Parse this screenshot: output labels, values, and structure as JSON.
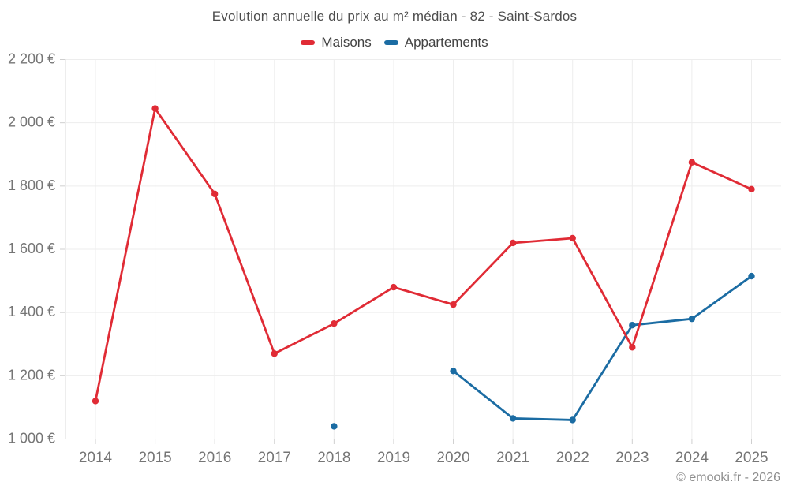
{
  "chart": {
    "title": "Evolution annuelle du prix au m² médian - 82 - Saint-Sardos",
    "footer": "© emooki.fr - 2026"
  },
  "chart_data": {
    "type": "line",
    "title": "Evolution annuelle du prix au m² médian - 82 - Saint-Sardos",
    "x": [
      2014,
      2015,
      2016,
      2017,
      2018,
      2019,
      2020,
      2021,
      2022,
      2023,
      2024,
      2025
    ],
    "series": [
      {
        "name": "Maisons",
        "color": "#e02b35",
        "values": [
          1120,
          2045,
          1775,
          1270,
          1365,
          1480,
          1425,
          1620,
          1635,
          1290,
          1875,
          1790
        ]
      },
      {
        "name": "Appartements",
        "color": "#1b6ca3",
        "values": [
          null,
          null,
          null,
          null,
          1040,
          null,
          1215,
          1065,
          1060,
          1360,
          1380,
          1515
        ]
      }
    ],
    "ylim": [
      1000,
      2200
    ],
    "yticks": [
      1000,
      1200,
      1400,
      1600,
      1800,
      2000,
      2200
    ],
    "ytick_labels": [
      "1 000 €",
      "1 200 €",
      "1 400 €",
      "1 600 €",
      "1 800 €",
      "2 000 €",
      "2 200 €"
    ],
    "grid": true,
    "legend_position": "top",
    "colors": {
      "grid": "#ededed",
      "axis": "#cfcfcf",
      "tick_text": "#757575"
    }
  }
}
